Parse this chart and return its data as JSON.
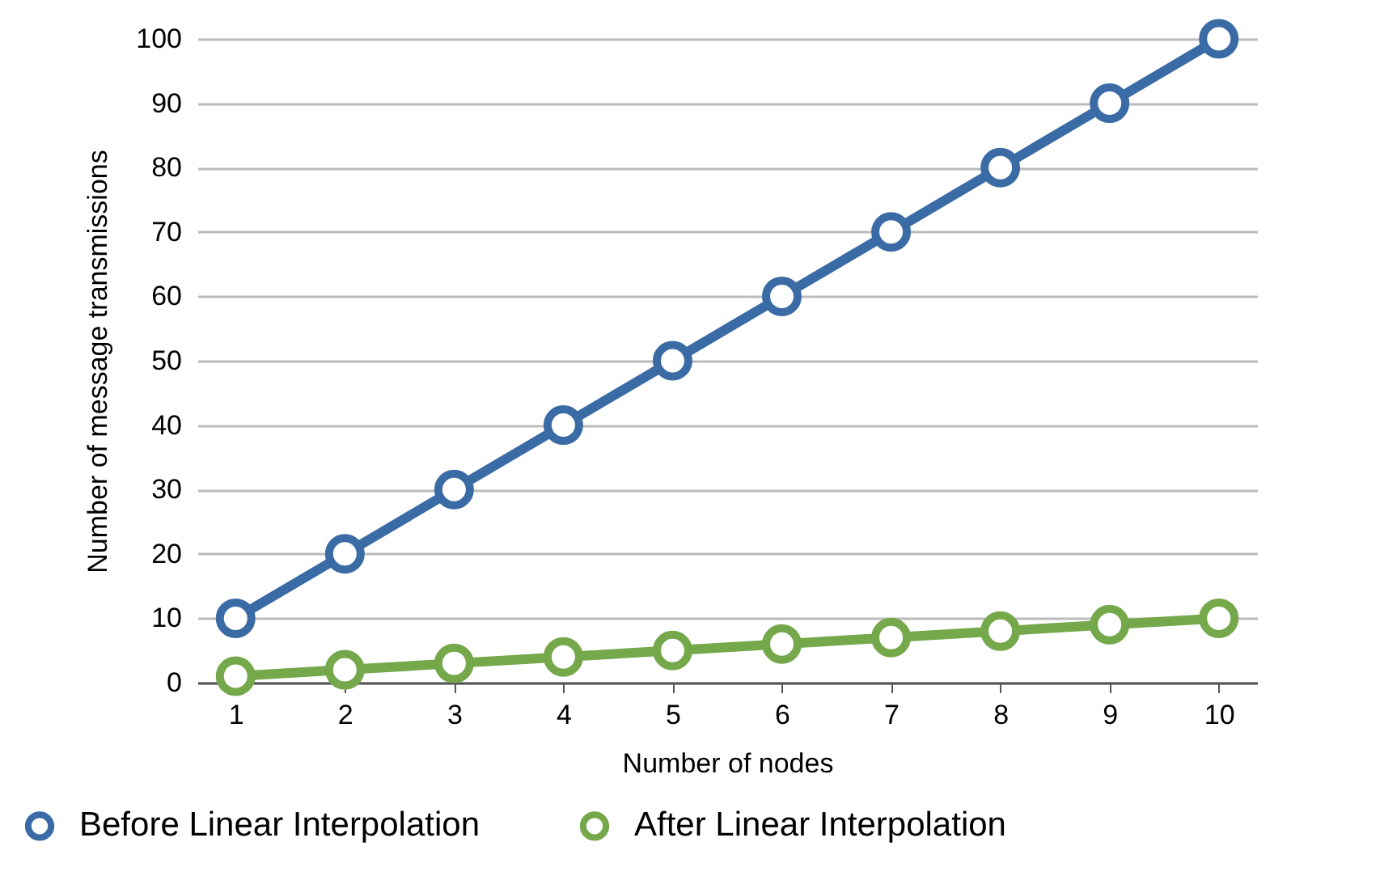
{
  "chart_data": {
    "type": "line",
    "xlabel": "Number of nodes",
    "ylabel": "Number of message transmissions",
    "categories": [
      "1",
      "2",
      "3",
      "4",
      "5",
      "6",
      "7",
      "8",
      "9",
      "10"
    ],
    "series": [
      {
        "name": "Before Linear Interpolation",
        "color": "#3b6ba5",
        "values": [
          10,
          20,
          30,
          40,
          50,
          60,
          70,
          80,
          90,
          100
        ]
      },
      {
        "name": "After Linear Interpolation",
        "color": "#74a84a",
        "values": [
          1,
          2,
          3,
          4,
          5,
          6,
          7,
          8,
          9,
          10
        ]
      }
    ],
    "ylim": [
      0,
      100
    ],
    "yticks": [
      0,
      10,
      20,
      30,
      40,
      50,
      60,
      70,
      80,
      90,
      100
    ],
    "grid": "y",
    "legend": "bottom",
    "marker": "circle",
    "line_style": "solid"
  }
}
